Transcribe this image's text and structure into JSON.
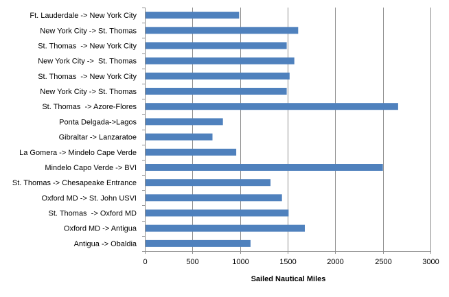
{
  "chart_data": {
    "type": "bar",
    "orientation": "horizontal",
    "title": "",
    "xlabel": "Sailed Nautical Miles",
    "ylabel": "",
    "xlim": [
      0,
      3000
    ],
    "xticks": [
      0,
      500,
      1000,
      1500,
      2000,
      2500,
      3000
    ],
    "grid": "vertical major gridlines",
    "legend": "none",
    "bar_color": "#4F81BD",
    "categories": [
      "Ft. Lauderdale -> New York City",
      "New York City -> St. Thomas",
      "St. Thomas  -> New York City",
      "New York City ->  St. Thomas",
      "St. Thomas  -> New York City",
      "New York City -> St. Thomas",
      "St. Thomas  -> Azore-Flores",
      "Ponta Delgada->Lagos",
      "Gibraltar -> Lanzaratoe",
      "La Gomera -> Mindelo Cape Verde",
      "Mindelo Capo Verde -> BVI",
      "St. Thomas -> Chesapeake Entrance",
      "Oxford MD -> St. John USVI",
      "St. Thomas  -> Oxford MD",
      "Oxford MD -> Antigua",
      "Antigua -> Obaldia"
    ],
    "values": [
      990,
      1610,
      1490,
      1570,
      1520,
      1490,
      2660,
      820,
      710,
      960,
      2500,
      1320,
      1440,
      1510,
      1680,
      1110
    ]
  }
}
